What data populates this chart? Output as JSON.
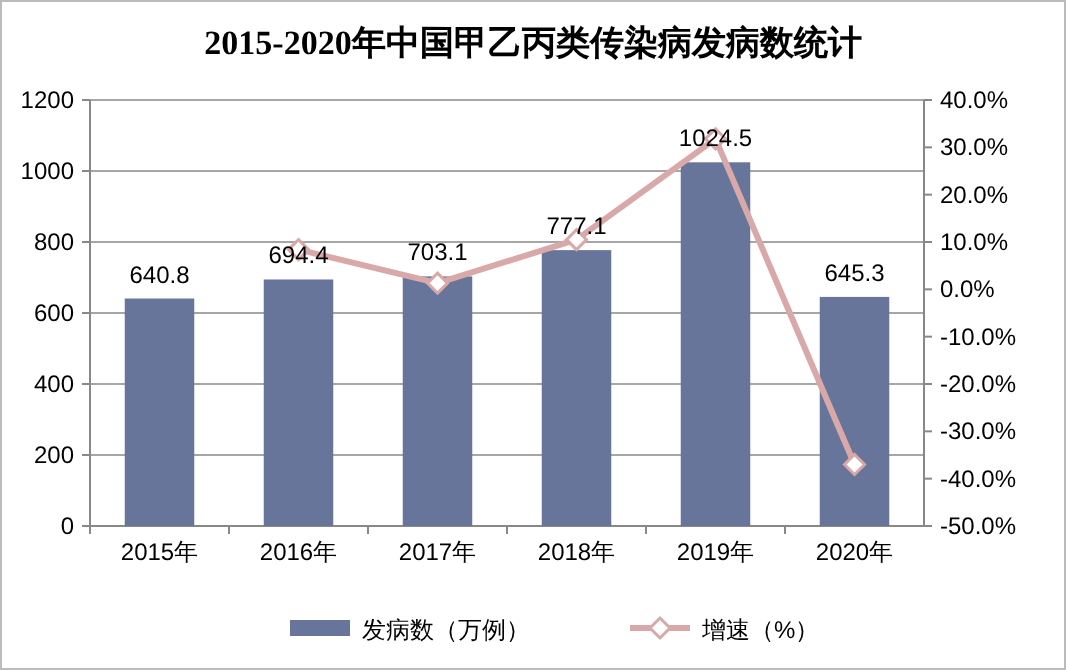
{
  "chart_data": {
    "type": "bar",
    "title": "2015-2020年中国甲乙丙类传染病发病数统计",
    "categories": [
      "2015年",
      "2016年",
      "2017年",
      "2018年",
      "2019年",
      "2020年"
    ],
    "series": [
      {
        "name": "发病数（万例）",
        "color": "#67759b",
        "values": [
          640.8,
          694.4,
          703.1,
          777.1,
          1024.5,
          645.3
        ],
        "value_labels": [
          "640.8",
          "694.4",
          "703.1",
          "777.1",
          "1024.5",
          "645.3"
        ]
      },
      {
        "name": "增速（%）",
        "type": "line",
        "axis": "y2",
        "color": "#d9a8a8",
        "marker": "diamond",
        "values": [
          null,
          8.4,
          1.3,
          10.5,
          31.8,
          -37.0
        ]
      }
    ],
    "ylim": [
      0,
      1200
    ],
    "yticks": [
      0,
      200,
      400,
      600,
      800,
      1000,
      1200
    ],
    "y2lim": [
      -50,
      40
    ],
    "y2ticks": [
      {
        "value": -50,
        "label": "-50.0%"
      },
      {
        "value": -40,
        "label": "-40.0%"
      },
      {
        "value": -30,
        "label": "-30.0%"
      },
      {
        "value": -20,
        "label": "-20.0%"
      },
      {
        "value": -10,
        "label": "-10.0%"
      },
      {
        "value": 0,
        "label": "0.0%"
      },
      {
        "value": 10,
        "label": "10.0%"
      },
      {
        "value": 20,
        "label": "20.0%"
      },
      {
        "value": 30,
        "label": "30.0%"
      },
      {
        "value": 40,
        "label": "40.0%"
      }
    ],
    "grid": "y",
    "legend": "bottom"
  }
}
